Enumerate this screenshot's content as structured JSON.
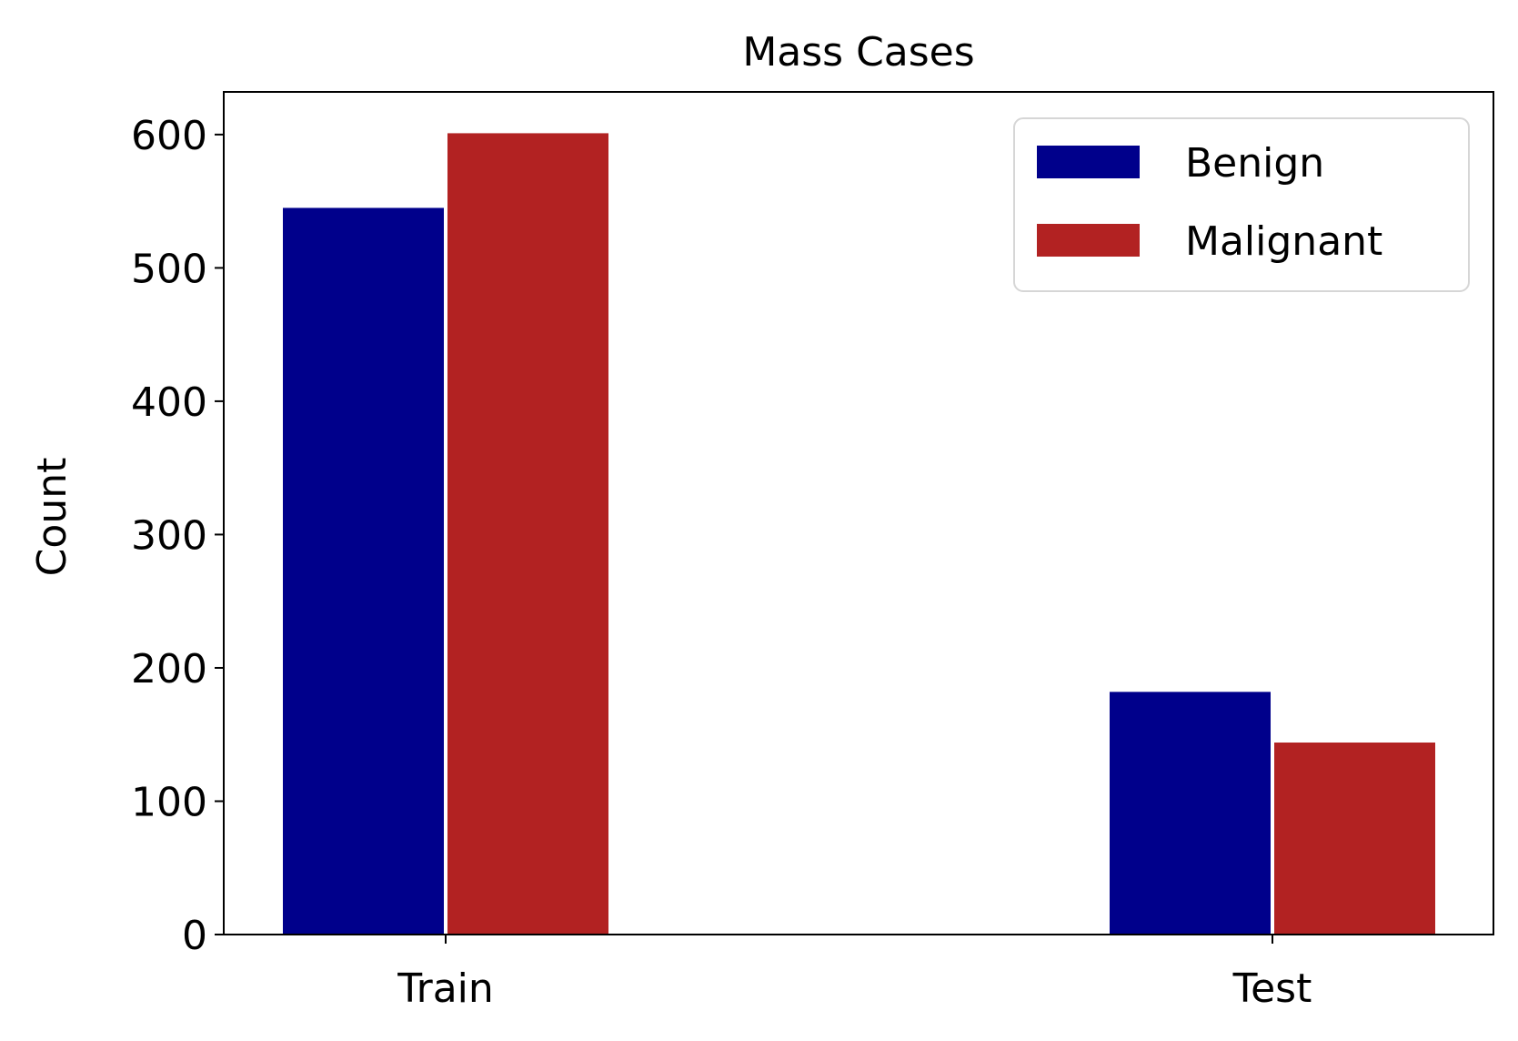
{
  "chart_data": {
    "type": "bar",
    "title": "Mass Cases",
    "xlabel": "",
    "ylabel": "Count",
    "categories": [
      "Train",
      "Test"
    ],
    "series": [
      {
        "name": "Benign",
        "values": [
          545,
          182
        ],
        "color": "#00008b"
      },
      {
        "name": "Malignant",
        "values": [
          601,
          144
        ],
        "color": "#b22222"
      }
    ],
    "ylim": [
      0,
      632
    ],
    "yticks": [
      0,
      100,
      200,
      300,
      400,
      500,
      600
    ],
    "grid": false,
    "legend_position": "top-right"
  }
}
